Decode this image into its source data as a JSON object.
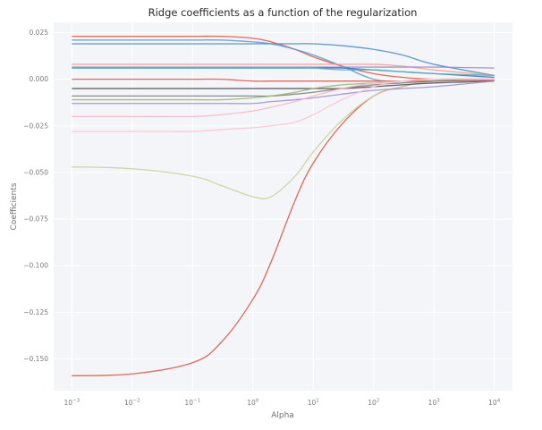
{
  "chart_data": {
    "type": "line",
    "title": "Ridge coefficients as a function of the regularization",
    "xlabel": "Alpha",
    "ylabel": "Coefficients",
    "xscale": "log",
    "xlim": [
      0.0005,
      20000
    ],
    "ylim": [
      -0.167,
      0.0305
    ],
    "grid": true,
    "background": "#f4f5f8",
    "x_ticks": [
      {
        "value": 0.001,
        "base": "10",
        "exp": "−3"
      },
      {
        "value": 0.01,
        "base": "10",
        "exp": "−2"
      },
      {
        "value": 0.1,
        "base": "10",
        "exp": "−1"
      },
      {
        "value": 1,
        "base": "10",
        "exp": "0"
      },
      {
        "value": 10,
        "base": "10",
        "exp": "1"
      },
      {
        "value": 100,
        "base": "10",
        "exp": "2"
      },
      {
        "value": 1000,
        "base": "10",
        "exp": "3"
      },
      {
        "value": 10000,
        "base": "10",
        "exp": "4"
      }
    ],
    "y_ticks": [
      {
        "value": 0.025,
        "label": "0.025"
      },
      {
        "value": 0,
        "label": "0.000"
      },
      {
        "value": -0.025,
        "label": "−0.025"
      },
      {
        "value": -0.05,
        "label": "−0.050"
      },
      {
        "value": -0.075,
        "label": "−0.075"
      },
      {
        "value": -0.1,
        "label": "−0.100"
      },
      {
        "value": -0.125,
        "label": "−0.125"
      },
      {
        "value": -0.15,
        "label": "−0.150"
      }
    ],
    "x": [
      0.001,
      0.01,
      0.1,
      0.3,
      1,
      2,
      5,
      10,
      30,
      100,
      300,
      1000,
      10000
    ],
    "series": [
      {
        "color": "#e05a47",
        "values": [
          -0.159,
          -0.158,
          -0.152,
          -0.141,
          -0.118,
          -0.098,
          -0.065,
          -0.045,
          -0.024,
          -0.009,
          -0.004,
          -0.001,
          0.0
        ]
      },
      {
        "color": "#c9d49a",
        "values": [
          -0.047,
          -0.048,
          -0.052,
          -0.057,
          -0.063,
          -0.063,
          -0.052,
          -0.039,
          -0.022,
          -0.009,
          -0.004,
          -0.001,
          0.0
        ]
      },
      {
        "color": "#e05a47",
        "values": [
          0.023,
          0.023,
          0.023,
          0.023,
          0.022,
          0.02,
          0.016,
          0.012,
          0.007,
          0.003,
          0.001,
          0.0,
          0.0
        ]
      },
      {
        "color": "#5b9bd5",
        "values": [
          0.021,
          0.021,
          0.021,
          0.021,
          0.02,
          0.019,
          0.016,
          0.013,
          0.007,
          0.0,
          -0.001,
          0.0,
          0.0
        ]
      },
      {
        "color": "#4f8ec8",
        "values": [
          0.019,
          0.019,
          0.019,
          0.019,
          0.019,
          0.019,
          0.019,
          0.019,
          0.018,
          0.016,
          0.013,
          0.008,
          0.002
        ]
      },
      {
        "color": "#f4a09a",
        "values": [
          0.008,
          0.008,
          0.008,
          0.008,
          0.008,
          0.008,
          0.008,
          0.008,
          0.008,
          0.008,
          0.007,
          0.005,
          0.002
        ]
      },
      {
        "color": "#9c8ec0",
        "values": [
          0.0065,
          0.0065,
          0.0065,
          0.0065,
          0.0065,
          0.0065,
          0.0065,
          0.0065,
          0.0065,
          0.0065,
          0.0065,
          0.0065,
          0.006
        ]
      },
      {
        "color": "#3a6fd8",
        "values": [
          0.006,
          0.006,
          0.006,
          0.006,
          0.006,
          0.006,
          0.006,
          0.006,
          0.006,
          0.005,
          0.004,
          0.003,
          0.001
        ]
      },
      {
        "color": "#5ab4ac",
        "values": [
          0.006,
          0.006,
          0.006,
          0.006,
          0.006,
          0.006,
          0.006,
          0.006,
          0.005,
          0.005,
          0.004,
          0.003,
          0.002
        ]
      },
      {
        "color": "#e05a47",
        "values": [
          0.0,
          0.0,
          0.0,
          0.0,
          -0.001,
          -0.001,
          -0.001,
          -0.001,
          -0.001,
          -0.001,
          -0.001,
          -0.001,
          -0.0005
        ]
      },
      {
        "color": "#555555",
        "values": [
          -0.005,
          -0.005,
          -0.005,
          -0.005,
          -0.005,
          -0.005,
          -0.005,
          -0.005,
          -0.005,
          -0.004,
          -0.003,
          -0.002,
          -0.001
        ]
      },
      {
        "color": "#808080",
        "values": [
          -0.009,
          -0.009,
          -0.009,
          -0.009,
          -0.009,
          -0.009,
          -0.008,
          -0.007,
          -0.005,
          -0.003,
          -0.002,
          -0.001,
          0.0
        ]
      },
      {
        "color": "#9ab872",
        "values": [
          -0.011,
          -0.011,
          -0.011,
          -0.011,
          -0.01,
          -0.009,
          -0.007,
          -0.005,
          -0.003,
          -0.002,
          -0.001,
          0.0,
          0.0
        ]
      },
      {
        "color": "#a08fd0",
        "values": [
          -0.013,
          -0.013,
          -0.013,
          -0.013,
          -0.013,
          -0.012,
          -0.011,
          -0.01,
          -0.008,
          -0.006,
          -0.005,
          -0.004,
          -0.001
        ]
      },
      {
        "color": "#f6b7c4",
        "values": [
          -0.02,
          -0.02,
          -0.02,
          -0.019,
          -0.017,
          -0.015,
          -0.012,
          -0.009,
          -0.005,
          -0.002,
          -0.001,
          0.0,
          0.0
        ]
      },
      {
        "color": "#f8c6cf",
        "values": [
          -0.028,
          -0.028,
          -0.028,
          -0.027,
          -0.026,
          -0.025,
          -0.023,
          -0.019,
          -0.011,
          -0.004,
          -0.001,
          0.0,
          0.0
        ]
      }
    ]
  }
}
